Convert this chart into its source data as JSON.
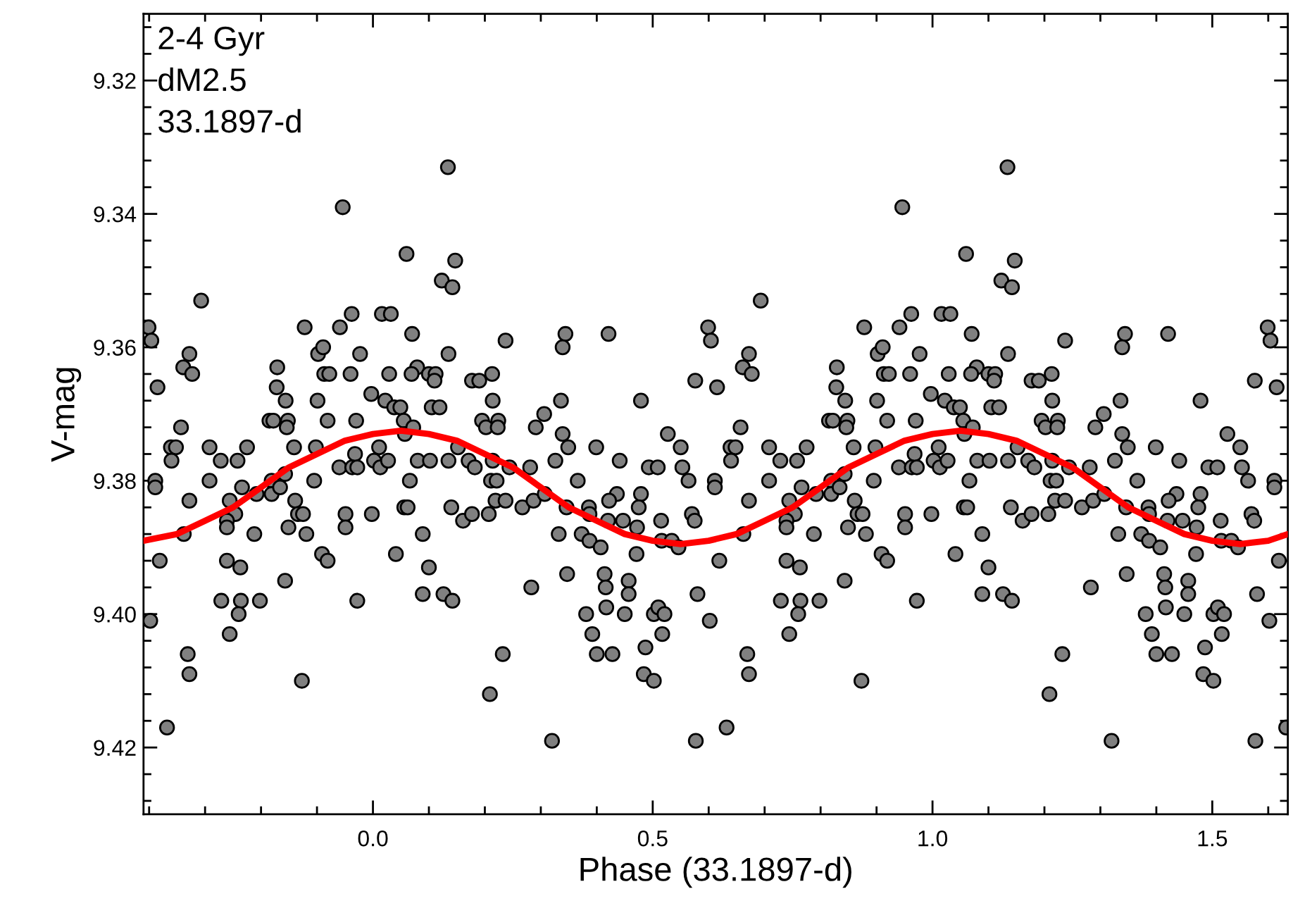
{
  "chart_data": {
    "type": "scatter",
    "xlabel": "Phase (33.1897-d)",
    "ylabel": "V-mag",
    "annotations": [
      "2-4 Gyr",
      "dM2.5",
      "33.1897-d"
    ],
    "xlim": [
      -0.41,
      1.635
    ],
    "ylim": [
      9.43,
      9.31
    ],
    "xticks": [
      {
        "value": -0.4,
        "label": null
      },
      {
        "value": -0.3,
        "label": null
      },
      {
        "value": -0.2,
        "label": null
      },
      {
        "value": -0.1,
        "label": null
      },
      {
        "value": 0,
        "label": "0.0"
      },
      {
        "value": 0.1,
        "label": null
      },
      {
        "value": 0.2,
        "label": null
      },
      {
        "value": 0.3,
        "label": null
      },
      {
        "value": 0.4,
        "label": null
      },
      0.5,
      {
        "value": 0.6,
        "label": null
      },
      {
        "value": 0.7,
        "label": null
      },
      {
        "value": 0.8,
        "label": null
      },
      {
        "value": 0.9,
        "label": null
      },
      {
        "value": 1,
        "label": "1.0"
      },
      {
        "value": 1.1,
        "label": null
      },
      {
        "value": 1.2,
        "label": null
      },
      {
        "value": 1.3,
        "label": null
      },
      {
        "value": 1.4,
        "label": null
      },
      1.5,
      {
        "value": 1.6,
        "label": null
      }
    ],
    "yticks": [
      {
        "value": 9.312,
        "label": null
      },
      {
        "value": 9.316,
        "label": null
      },
      9.32,
      {
        "value": 9.324,
        "label": null
      },
      {
        "value": 9.328,
        "label": null
      },
      {
        "value": 9.332,
        "label": null
      },
      {
        "value": 9.336,
        "label": null
      },
      9.34,
      {
        "value": 9.344,
        "label": null
      },
      {
        "value": 9.348,
        "label": null
      },
      {
        "value": 9.352,
        "label": null
      },
      {
        "value": 9.356,
        "label": null
      },
      9.36,
      {
        "value": 9.364,
        "label": null
      },
      {
        "value": 9.368,
        "label": null
      },
      {
        "value": 9.372,
        "label": null
      },
      {
        "value": 9.376,
        "label": null
      },
      9.38,
      {
        "value": 9.384,
        "label": null
      },
      {
        "value": 9.388,
        "label": null
      },
      {
        "value": 9.392,
        "label": null
      },
      {
        "value": 9.396,
        "label": null
      },
      {
        "value": 9.4,
        "label": "9.40"
      },
      {
        "value": 9.404,
        "label": null
      },
      {
        "value": 9.408,
        "label": null
      },
      {
        "value": 9.412,
        "label": null
      },
      {
        "value": 9.416,
        "label": null
      },
      9.42,
      {
        "value": 9.424,
        "label": null
      },
      {
        "value": 9.428,
        "label": null
      }
    ],
    "grid": false,
    "legend": false,
    "marker": "circle",
    "series": [
      {
        "color": "#808080",
        "x": [
          -0.054,
          -0.307,
          -0.401,
          -0.396,
          -0.122,
          -0.059,
          -0.328,
          -0.339,
          -0.323,
          -0.385,
          -0.171,
          -0.098,
          -0.089,
          -0.087,
          -0.078,
          -0.172,
          -0.156,
          -0.185,
          -0.178,
          -0.152,
          -0.154,
          -0.099,
          -0.081,
          -0.343,
          -0.361,
          -0.352,
          -0.36,
          -0.292,
          -0.225,
          -0.272,
          -0.242,
          -0.141,
          -0.102,
          -0.06,
          -0.389,
          -0.389,
          -0.292,
          -0.234,
          -0.208,
          -0.181,
          -0.181,
          -0.166,
          -0.157,
          -0.105,
          -0.139,
          -0.328,
          -0.256,
          -0.246,
          -0.261,
          -0.261,
          -0.338,
          -0.212,
          -0.151,
          -0.134,
          -0.125,
          -0.119,
          -0.049,
          -0.049,
          -0.381,
          -0.261,
          -0.237,
          -0.091,
          -0.081,
          -0.157,
          -0.271,
          -0.236,
          -0.202,
          -0.24,
          -0.256,
          -0.398,
          -0.331,
          -0.328,
          -0.127,
          -0.368,
          0.134,
          0.06,
          0.147,
          0.123,
          0.142,
          -0.038,
          0.016,
          0.032,
          0.07,
          0.237,
          -0.023,
          0.135,
          -0.04,
          0.029,
          0.079,
          0.069,
          0.1,
          0.112,
          0.11,
          0.177,
          0.19,
          0.213,
          0.214,
          -0.003,
          0.022,
          0.038,
          0.049,
          0.055,
          0.105,
          0.119,
          -0.03,
          0.195,
          0.202,
          0.224,
          0.223,
          0.291,
          0.057,
          0.072,
          0.011,
          -0.032,
          0.002,
          0.013,
          0.027,
          -0.037,
          -0.028,
          0.08,
          0.102,
          0.135,
          0.152,
          0.171,
          0.182,
          0.214,
          0.244,
          0.281,
          0.066,
          0.211,
          0.221,
          0.056,
          0.062,
          -0.002,
          0.14,
          0.161,
          0.177,
          0.207,
          0.219,
          0.237,
          0.267,
          0.287,
          0.089,
          0.041,
          0.1,
          0.283,
          0.089,
          0.126,
          0.142,
          -0.028,
          0.232,
          0.209,
          0.344,
          0.339,
          0.421,
          0.576,
          0.336,
          0.306,
          0.479,
          0.339,
          0.349,
          0.399,
          0.527,
          0.55,
          0.326,
          0.441,
          0.493,
          0.509,
          0.553,
          0.366,
          0.564,
          0.307,
          0.436,
          0.479,
          0.422,
          0.346,
          0.386,
          0.475,
          0.387,
          0.42,
          0.447,
          0.515,
          0.57,
          0.575,
          0.472,
          0.332,
          0.373,
          0.387,
          0.407,
          0.516,
          0.534,
          0.546,
          0.471,
          0.347,
          0.414,
          0.416,
          0.457,
          0.457,
          0.58,
          0.417,
          0.381,
          0.45,
          0.502,
          0.51,
          0.521,
          0.392,
          0.517,
          0.487,
          0.4,
          0.428,
          0.484,
          0.502,
          0.32,
          0.577,
          0.946,
          0.693,
          0.599,
          0.604,
          0.878,
          0.941,
          0.672,
          0.661,
          0.677,
          0.615,
          0.829,
          0.902,
          0.911,
          0.913,
          0.922,
          0.828,
          0.844,
          0.815,
          0.822,
          0.848,
          0.846,
          0.901,
          0.919,
          0.657,
          0.639,
          0.648,
          0.64,
          0.708,
          0.775,
          0.728,
          0.758,
          0.859,
          0.898,
          0.94,
          0.611,
          0.611,
          0.708,
          0.766,
          0.792,
          0.819,
          0.819,
          0.834,
          0.843,
          0.895,
          0.861,
          0.672,
          0.744,
          0.754,
          0.739,
          0.739,
          0.662,
          0.788,
          0.849,
          0.866,
          0.875,
          0.881,
          0.951,
          0.951,
          0.619,
          0.739,
          0.763,
          0.909,
          0.919,
          0.843,
          0.729,
          0.764,
          0.798,
          0.76,
          0.744,
          0.602,
          0.669,
          0.672,
          0.873,
          0.632,
          1.134,
          1.06,
          1.147,
          1.123,
          1.142,
          0.962,
          1.016,
          1.032,
          1.07,
          1.237,
          0.977,
          1.135,
          0.96,
          1.029,
          1.079,
          1.069,
          1.1,
          1.112,
          1.11,
          1.177,
          1.19,
          1.213,
          1.214,
          0.997,
          1.022,
          1.038,
          1.049,
          1.055,
          1.105,
          1.119,
          0.97,
          1.195,
          1.202,
          1.224,
          1.223,
          1.291,
          1.057,
          1.072,
          1.011,
          0.968,
          1.002,
          1.013,
          1.027,
          0.963,
          0.972,
          1.08,
          1.102,
          1.135,
          1.152,
          1.171,
          1.182,
          1.214,
          1.244,
          1.281,
          1.066,
          1.211,
          1.221,
          1.056,
          1.062,
          0.998,
          1.14,
          1.161,
          1.177,
          1.207,
          1.219,
          1.237,
          1.267,
          1.287,
          1.089,
          1.041,
          1.1,
          1.283,
          1.089,
          1.126,
          1.142,
          0.972,
          1.232,
          1.209,
          1.344,
          1.339,
          1.421,
          1.576,
          1.336,
          1.306,
          1.479,
          1.339,
          1.349,
          1.399,
          1.527,
          1.55,
          1.326,
          1.441,
          1.493,
          1.509,
          1.553,
          1.366,
          1.564,
          1.307,
          1.436,
          1.479,
          1.422,
          1.346,
          1.386,
          1.475,
          1.387,
          1.42,
          1.447,
          1.515,
          1.57,
          1.575,
          1.472,
          1.332,
          1.373,
          1.387,
          1.407,
          1.516,
          1.534,
          1.546,
          1.471,
          1.347,
          1.414,
          1.416,
          1.457,
          1.457,
          1.58,
          1.417,
          1.381,
          1.45,
          1.502,
          1.51,
          1.521,
          1.392,
          1.517,
          1.487,
          1.4,
          1.428,
          1.484,
          1.502,
          1.32,
          1.577,
          1.599,
          1.604,
          1.615,
          1.611,
          1.611,
          1.619,
          1.602,
          1.632
        ],
        "values": [
          9.339,
          9.353,
          9.357,
          9.359,
          9.357,
          9.357,
          9.361,
          9.363,
          9.364,
          9.366,
          9.363,
          9.361,
          9.36,
          9.364,
          9.364,
          9.366,
          9.368,
          9.371,
          9.371,
          9.371,
          9.372,
          9.368,
          9.371,
          9.372,
          9.375,
          9.375,
          9.377,
          9.375,
          9.375,
          9.377,
          9.377,
          9.375,
          9.375,
          9.378,
          9.38,
          9.381,
          9.38,
          9.381,
          9.382,
          9.38,
          9.382,
          9.381,
          9.379,
          9.38,
          9.383,
          9.383,
          9.383,
          9.385,
          9.386,
          9.387,
          9.388,
          9.388,
          9.387,
          9.385,
          9.385,
          9.388,
          9.385,
          9.387,
          9.392,
          9.392,
          9.393,
          9.391,
          9.392,
          9.395,
          9.398,
          9.398,
          9.398,
          9.4,
          9.403,
          9.401,
          9.406,
          9.409,
          9.41,
          9.417,
          9.333,
          9.346,
          9.347,
          9.35,
          9.351,
          9.355,
          9.355,
          9.355,
          9.358,
          9.359,
          9.361,
          9.361,
          9.364,
          9.364,
          9.363,
          9.364,
          9.364,
          9.364,
          9.365,
          9.365,
          9.365,
          9.364,
          9.368,
          9.367,
          9.368,
          9.369,
          9.369,
          9.371,
          9.369,
          9.369,
          9.371,
          9.371,
          9.372,
          9.371,
          9.372,
          9.372,
          9.373,
          9.372,
          9.375,
          9.376,
          9.377,
          9.378,
          9.377,
          9.378,
          9.378,
          9.377,
          9.377,
          9.377,
          9.375,
          9.377,
          9.378,
          9.377,
          9.378,
          9.378,
          9.38,
          9.38,
          9.38,
          9.384,
          9.384,
          9.385,
          9.384,
          9.386,
          9.385,
          9.385,
          9.383,
          9.383,
          9.384,
          9.383,
          9.388,
          9.391,
          9.393,
          9.396,
          9.397,
          9.397,
          9.398,
          9.398,
          9.406,
          9.412,
          9.358,
          9.36,
          9.358,
          9.365,
          9.368,
          9.37,
          9.368,
          9.373,
          9.375,
          9.375,
          9.373,
          9.375,
          9.377,
          9.377,
          9.378,
          9.378,
          9.378,
          9.38,
          9.38,
          9.382,
          9.382,
          9.382,
          9.383,
          9.384,
          9.384,
          9.384,
          9.385,
          9.386,
          9.386,
          9.386,
          9.385,
          9.386,
          9.387,
          9.388,
          9.388,
          9.389,
          9.39,
          9.389,
          9.389,
          9.39,
          9.391,
          9.394,
          9.394,
          9.396,
          9.395,
          9.397,
          9.397,
          9.399,
          9.4,
          9.4,
          9.4,
          9.399,
          9.4,
          9.403,
          9.403,
          9.405,
          9.406,
          9.406,
          9.409,
          9.41,
          9.419,
          9.419,
          9.339,
          9.353,
          9.357,
          9.359,
          9.357,
          9.357,
          9.361,
          9.363,
          9.364,
          9.366,
          9.363,
          9.361,
          9.36,
          9.364,
          9.364,
          9.366,
          9.368,
          9.371,
          9.371,
          9.371,
          9.372,
          9.368,
          9.371,
          9.372,
          9.375,
          9.375,
          9.377,
          9.375,
          9.375,
          9.377,
          9.377,
          9.375,
          9.375,
          9.378,
          9.38,
          9.381,
          9.38,
          9.381,
          9.382,
          9.38,
          9.382,
          9.381,
          9.379,
          9.38,
          9.383,
          9.383,
          9.383,
          9.385,
          9.386,
          9.387,
          9.388,
          9.388,
          9.387,
          9.385,
          9.385,
          9.388,
          9.385,
          9.387,
          9.392,
          9.392,
          9.393,
          9.391,
          9.392,
          9.395,
          9.398,
          9.398,
          9.398,
          9.4,
          9.403,
          9.401,
          9.406,
          9.409,
          9.41,
          9.417,
          9.333,
          9.346,
          9.347,
          9.35,
          9.351,
          9.355,
          9.355,
          9.355,
          9.358,
          9.359,
          9.361,
          9.361,
          9.364,
          9.364,
          9.363,
          9.364,
          9.364,
          9.364,
          9.365,
          9.365,
          9.365,
          9.364,
          9.368,
          9.367,
          9.368,
          9.369,
          9.369,
          9.371,
          9.369,
          9.369,
          9.371,
          9.371,
          9.372,
          9.371,
          9.372,
          9.372,
          9.373,
          9.372,
          9.375,
          9.376,
          9.377,
          9.378,
          9.377,
          9.378,
          9.378,
          9.377,
          9.377,
          9.377,
          9.375,
          9.377,
          9.378,
          9.377,
          9.378,
          9.378,
          9.38,
          9.38,
          9.38,
          9.384,
          9.384,
          9.385,
          9.384,
          9.386,
          9.385,
          9.385,
          9.383,
          9.383,
          9.384,
          9.383,
          9.388,
          9.391,
          9.393,
          9.396,
          9.397,
          9.397,
          9.398,
          9.398,
          9.406,
          9.412,
          9.358,
          9.36,
          9.358,
          9.365,
          9.368,
          9.37,
          9.368,
          9.373,
          9.375,
          9.375,
          9.373,
          9.375,
          9.377,
          9.377,
          9.378,
          9.378,
          9.378,
          9.38,
          9.38,
          9.382,
          9.382,
          9.382,
          9.383,
          9.384,
          9.384,
          9.384,
          9.385,
          9.386,
          9.386,
          9.386,
          9.385,
          9.386,
          9.387,
          9.388,
          9.388,
          9.389,
          9.39,
          9.389,
          9.389,
          9.39,
          9.391,
          9.394,
          9.394,
          9.396,
          9.395,
          9.397,
          9.397,
          9.399,
          9.4,
          9.4,
          9.4,
          9.399,
          9.4,
          9.403,
          9.403,
          9.405,
          9.406,
          9.406,
          9.409,
          9.41,
          9.419,
          9.419,
          9.357,
          9.359,
          9.366,
          9.38,
          9.381,
          9.392,
          9.401,
          9.417
        ]
      },
      {
        "type": "line",
        "color": "#ff0000",
        "marker": "none",
        "line_style": "solid",
        "x": [
          -0.41,
          -0.35,
          -0.3,
          -0.25,
          -0.2,
          -0.15,
          -0.1,
          -0.05,
          0.0,
          0.05,
          0.1,
          0.15,
          0.2,
          0.25,
          0.3,
          0.35,
          0.4,
          0.45,
          0.5,
          0.55,
          0.6,
          0.65,
          0.7,
          0.75,
          0.8,
          0.85,
          0.9,
          0.95,
          1.0,
          1.05,
          1.1,
          1.15,
          1.2,
          1.25,
          1.3,
          1.35,
          1.4,
          1.45,
          1.5,
          1.55,
          1.6,
          1.635
        ],
        "values": [
          9.389,
          9.388,
          9.386,
          9.384,
          9.381,
          9.378,
          9.376,
          9.374,
          9.373,
          9.3725,
          9.373,
          9.374,
          9.376,
          9.378,
          9.381,
          9.384,
          9.386,
          9.388,
          9.389,
          9.3895,
          9.389,
          9.388,
          9.386,
          9.384,
          9.381,
          9.378,
          9.376,
          9.374,
          9.373,
          9.3725,
          9.373,
          9.374,
          9.376,
          9.378,
          9.381,
          9.384,
          9.386,
          9.388,
          9.389,
          9.3895,
          9.389,
          9.388
        ]
      }
    ]
  }
}
